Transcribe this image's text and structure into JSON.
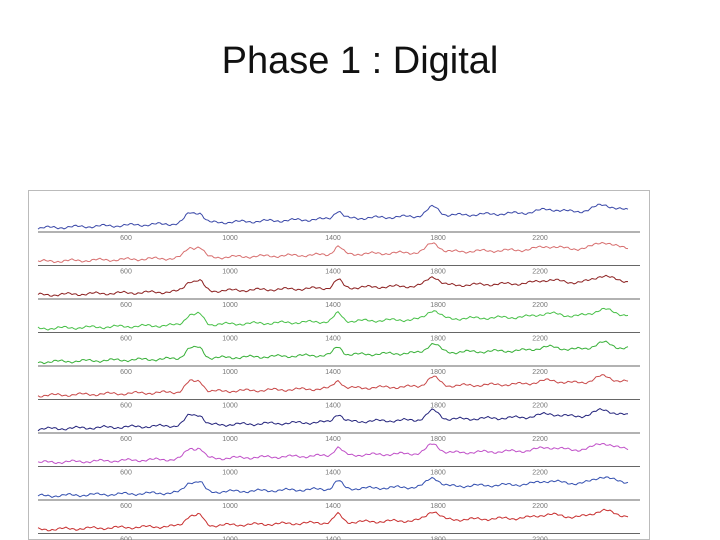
{
  "header": {
    "title": "Phase 1 : Digital"
  },
  "spectra": {
    "x_tick_labels": [
      "600",
      "1000",
      "1400",
      "1800",
      "2200"
    ],
    "trace_colors": [
      "#3a48a8",
      "#d87070",
      "#8c2020",
      "#48c048",
      "#38b038",
      "#c84848",
      "#24247c",
      "#c050c8",
      "#3450b0",
      "#c83030"
    ]
  }
}
